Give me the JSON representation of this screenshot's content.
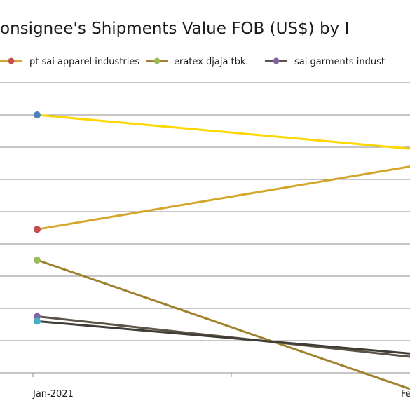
{
  "chart_data": {
    "type": "line",
    "title": "onsignee's Shipments Value FOB (US$) by I",
    "xlabel": "",
    "ylabel": "",
    "categories": [
      "Jan-2021",
      "Fe"
    ],
    "gridlines": true,
    "legend_position": "top",
    "legend": [
      {
        "name": "pt sai apparel industries",
        "color": "#C0504D"
      },
      {
        "name": "eratex djaja tbk.",
        "color": "#9BBB59"
      },
      {
        "name": "sai garments indust",
        "color": "#8064A2"
      }
    ],
    "y_grid_values": [
      0,
      1,
      2,
      3,
      4,
      5,
      6,
      7,
      8,
      9
    ],
    "series": [
      {
        "color": "#FFD700",
        "line_color": "#FFD700",
        "marker": "#4F81BD",
        "values": [
          8.0,
          6.95
        ]
      },
      {
        "name": "pt sai apparel industries",
        "line_color": "#D4A72C",
        "marker": "#C0504D",
        "values": [
          4.45,
          6.4
        ]
      },
      {
        "name": "eratex djaja tbk.",
        "line_color": "#A0822E",
        "marker": "#9BBB59",
        "values": [
          3.5,
          -0.5
        ]
      },
      {
        "name": "sai garments indust",
        "line_color": "#5C5446",
        "marker": "#8064A2",
        "values": [
          1.75,
          0.5
        ]
      },
      {
        "line_color": "#3F3D36",
        "marker": "#4BACC6",
        "values": [
          1.6,
          0.6
        ]
      }
    ]
  }
}
